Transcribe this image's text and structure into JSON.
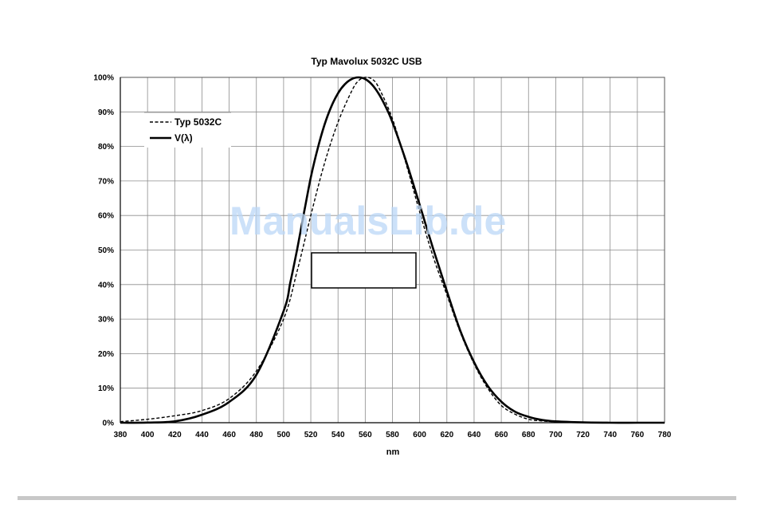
{
  "chart_data": {
    "type": "line",
    "title": "Typ Mavolux 5032C USB",
    "xlabel": "nm",
    "ylabel": "",
    "xlim": [
      380,
      780
    ],
    "ylim": [
      0,
      100
    ],
    "x_ticks": [
      380,
      400,
      420,
      440,
      460,
      480,
      500,
      520,
      540,
      560,
      580,
      600,
      620,
      640,
      660,
      680,
      700,
      720,
      740,
      760,
      780
    ],
    "y_ticks": [
      0,
      10,
      20,
      30,
      40,
      50,
      60,
      70,
      80,
      90,
      100
    ],
    "y_tick_format": "percent",
    "grid": true,
    "legend_position": "top-left",
    "series": [
      {
        "name": "Typ 5032C",
        "style": "dashed",
        "x": [
          380,
          400,
          420,
          440,
          460,
          480,
          500,
          510,
          520,
          530,
          540,
          550,
          555,
          560,
          565,
          570,
          580,
          590,
          600,
          610,
          620,
          630,
          640,
          650,
          660,
          670,
          680,
          690,
          700,
          720,
          740,
          760,
          780
        ],
        "y": [
          0.3,
          1,
          2,
          3.5,
          7,
          15,
          30,
          44,
          60,
          75,
          87,
          96,
          99,
          100,
          99.5,
          97,
          88,
          75,
          61,
          48,
          37,
          26,
          17,
          10,
          5,
          2.5,
          1,
          0.5,
          0.3,
          0.1,
          0,
          0,
          0
        ]
      },
      {
        "name": "V(λ)",
        "style": "solid",
        "x": [
          380,
          400,
          420,
          440,
          460,
          480,
          500,
          505,
          510,
          515,
          520,
          525,
          530,
          535,
          540,
          545,
          550,
          555,
          560,
          565,
          570,
          575,
          580,
          590,
          600,
          610,
          620,
          630,
          640,
          650,
          660,
          670,
          680,
          690,
          700,
          720,
          740,
          760,
          780
        ],
        "y": [
          0,
          0.04,
          0.4,
          2.3,
          6,
          13.9,
          32.3,
          40.7,
          50.3,
          60.8,
          71,
          79.3,
          86.2,
          91.5,
          95.4,
          98,
          99.5,
          100,
          99.5,
          97.9,
          95.2,
          91.5,
          87,
          75.7,
          63.1,
          50.3,
          38.1,
          26.5,
          17.5,
          10.7,
          6.1,
          3.2,
          1.7,
          0.8,
          0.4,
          0.1,
          0,
          0,
          0
        ]
      }
    ],
    "annotation_box": true
  },
  "watermark": {
    "text": "ManualsLib.de"
  }
}
